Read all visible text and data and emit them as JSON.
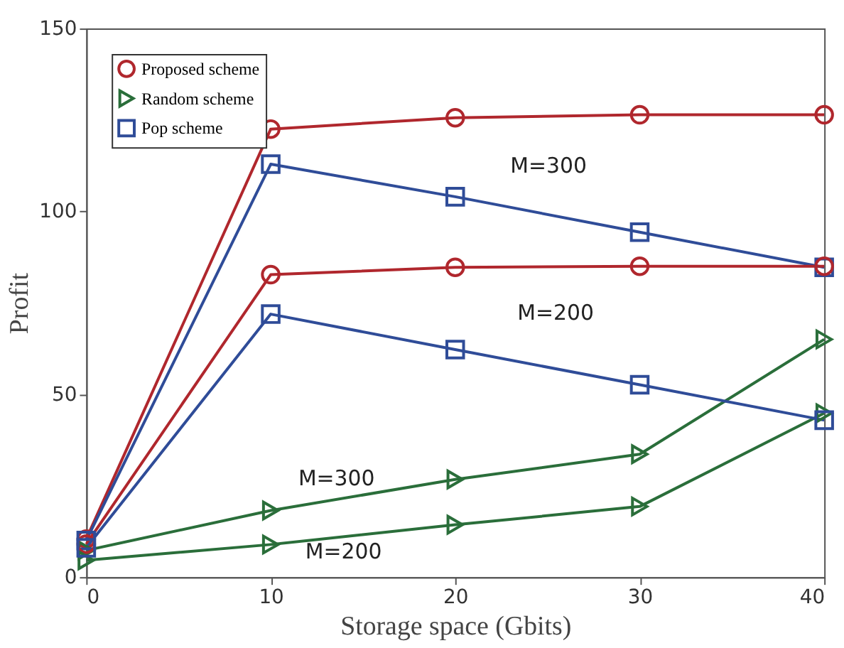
{
  "chart_data": {
    "type": "line",
    "xlabel": "Storage space (Gbits)",
    "ylabel": "Profit",
    "x": [
      0,
      10,
      20,
      30,
      40
    ],
    "xlim": [
      0,
      40
    ],
    "xticks": [
      0,
      10,
      20,
      30,
      40
    ],
    "ylim": [
      0,
      150
    ],
    "yticks": [
      0,
      50,
      100,
      150
    ],
    "grid": false,
    "legend": "top left",
    "line_style": "solid",
    "series": [
      {
        "name": "Proposed scheme",
        "color": "#b0272d",
        "marker": "circle",
        "values": [
          10.4,
          122.5,
          125.6,
          126.4,
          126.4
        ]
      },
      {
        "name": "Random scheme",
        "color": "#2a6e3a",
        "marker": "triangle",
        "values": [
          7.3,
          18.2,
          26.7,
          33.6,
          65
        ]
      },
      {
        "name": "Pop scheme",
        "color": "#2f4c98",
        "marker": "square",
        "values": [
          10,
          112.9,
          104,
          94.3,
          84.7
        ]
      },
      {
        "color": "#b0272d",
        "marker": "circle",
        "values": [
          9,
          82.7,
          84.7,
          85,
          85
        ]
      },
      {
        "color": "#2a6e3a",
        "marker": "triangle",
        "values": [
          4.6,
          8.9,
          14.3,
          19.3,
          44.8
        ]
      },
      {
        "color": "#2f4c98",
        "marker": "square",
        "values": [
          8,
          71.9,
          62.2,
          52.6,
          42.9
        ]
      }
    ],
    "annotations": [
      "M=300",
      "M=200",
      "M=300",
      "M=200"
    ]
  }
}
